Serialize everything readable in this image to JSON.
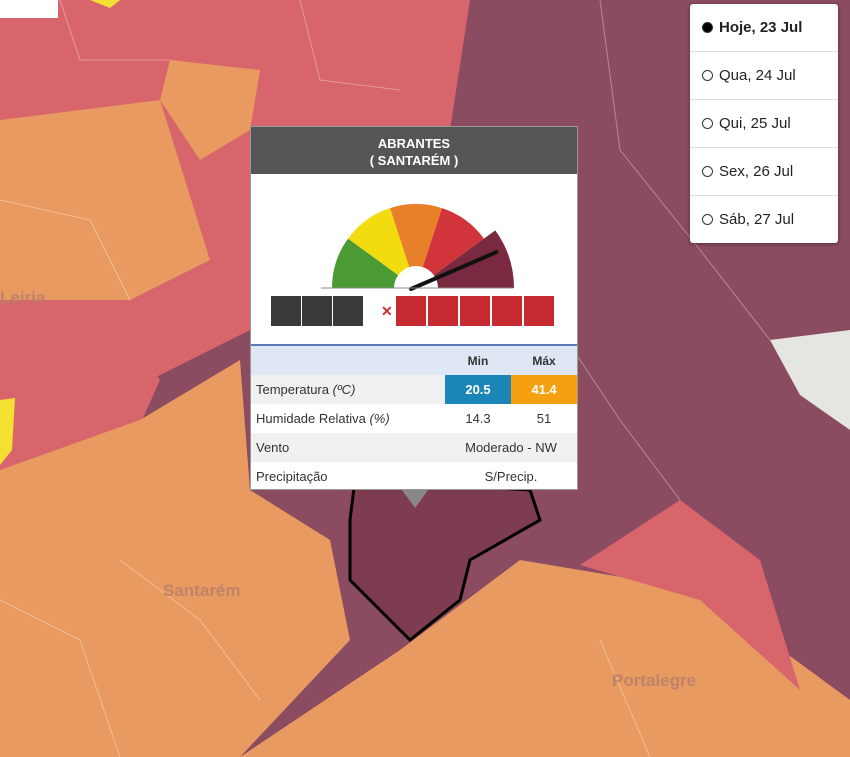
{
  "map": {
    "labels": [
      "Leiria",
      "Santarém",
      "Portalegre"
    ]
  },
  "day_selector": {
    "options": [
      "Hoje, 23 Jul",
      "Qua, 24 Jul",
      "Qui, 25 Jul",
      "Sex, 26 Jul",
      "Sáb, 27 Jul"
    ],
    "selected": 0
  },
  "popup": {
    "title": "ABRANTES",
    "subtitle": "( SANTARÉM )",
    "table": {
      "columns": [
        "Min",
        "Máx"
      ],
      "rows": [
        {
          "label": "Temperatura",
          "unit": "(ºC)",
          "min": 20.5,
          "max": 41.4
        },
        {
          "label": "Humidade Relativa",
          "unit": "(%)",
          "min": 14.3,
          "max": 51
        },
        {
          "label": "Vento",
          "value": "Moderado - NW"
        },
        {
          "label": "Precipitação",
          "value": "S/Precip."
        }
      ]
    }
  }
}
